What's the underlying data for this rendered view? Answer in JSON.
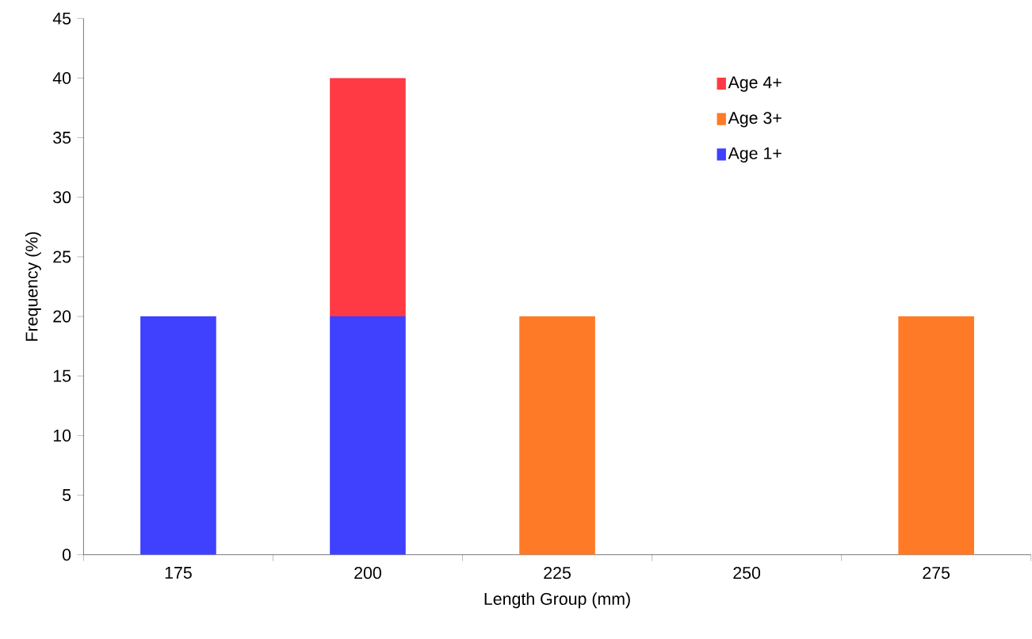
{
  "chart_data": {
    "type": "bar",
    "stacked": true,
    "xlabel": "Length Group (mm)",
    "ylabel": "Frequency (%)",
    "categories": [
      "175",
      "200",
      "225",
      "250",
      "275"
    ],
    "series": [
      {
        "name": "Age 1+",
        "color": "#4040ff",
        "values": [
          20,
          20,
          0,
          0,
          0
        ]
      },
      {
        "name": "Age 3+",
        "color": "#ff7a26",
        "values": [
          0,
          0,
          20,
          0,
          20
        ]
      },
      {
        "name": "Age 4+",
        "color": "#ff3a44",
        "values": [
          0,
          20,
          0,
          0,
          0
        ]
      }
    ],
    "ylim": [
      0,
      45
    ],
    "yticks": [
      0,
      5,
      10,
      15,
      20,
      25,
      30,
      35,
      40,
      45
    ],
    "grid": false,
    "legend": "top right"
  }
}
